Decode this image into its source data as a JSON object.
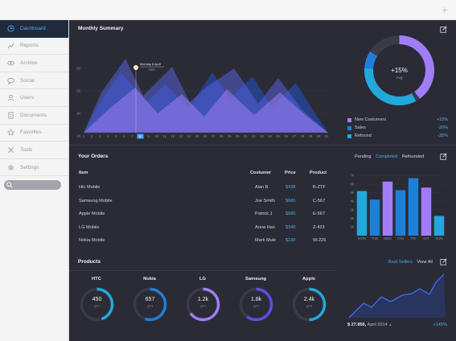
{
  "colors": {
    "accent": "#3fa9f5",
    "purple": "#a17ef7",
    "blue": "#1e7fd9",
    "cyan": "#22a8db",
    "bg": "#2b2b36"
  },
  "sidebar": {
    "items": [
      {
        "label": "Dashboard",
        "icon": "clock-icon"
      },
      {
        "label": "Reports",
        "icon": "chart-line-icon"
      },
      {
        "label": "Archive",
        "icon": "eye-icon"
      },
      {
        "label": "Social",
        "icon": "chat-bubble-icon"
      },
      {
        "label": "Users",
        "icon": "user-icon"
      },
      {
        "label": "Documents",
        "icon": "document-icon"
      },
      {
        "label": "Favorites",
        "icon": "star-icon"
      },
      {
        "label": "Tools",
        "icon": "tools-icon"
      },
      {
        "label": "Settings",
        "icon": "gear-icon"
      }
    ]
  },
  "summary": {
    "title": "Monthly Summary",
    "tooltip": {
      "label": "Monday 8 April",
      "value": "+58%"
    },
    "y_ticks": [
      "80",
      "60",
      "40",
      "20",
      "0"
    ],
    "x_ticks": [
      "1",
      "2",
      "3",
      "4",
      "5",
      "6",
      "7",
      "8",
      "9",
      "10",
      "11",
      "12",
      "13",
      "14",
      "15",
      "16",
      "17",
      "18",
      "19",
      "20",
      "21",
      "22",
      "23",
      "24",
      "25",
      "26",
      "27",
      "28",
      "29",
      "30",
      "31"
    ],
    "selected_day": "8"
  },
  "donut": {
    "center_value": "+15%",
    "center_label": "Avg",
    "legend": [
      {
        "label": "New Costumers",
        "pct": "+15%",
        "color": "#a17ef7"
      },
      {
        "label": "Sales",
        "pct": "-20%",
        "color": "#1e7fd9"
      },
      {
        "label": "Refound",
        "pct": "-35%",
        "color": "#22a8db"
      }
    ]
  },
  "orders": {
    "title": "Your Orders",
    "headers": {
      "item": "Item",
      "customer": "Costumer",
      "price": "Price",
      "product": "Product"
    },
    "rows": [
      {
        "item": "Htc Mobile",
        "customer": "Alan B",
        "price": "$438",
        "product": "B-ZTF"
      },
      {
        "item": "Samsung Mobile",
        "customer": "Joe Smith",
        "price": "$680",
        "product": "C-567"
      },
      {
        "item": "Apple Mobile",
        "customer": "Patrick J",
        "price": "$680",
        "product": "E-567"
      },
      {
        "item": "LG Mobile",
        "customer": "Anna Han",
        "price": "$340",
        "product": "Z-423"
      },
      {
        "item": "Nokia Mobile",
        "customer": "Mark Mule",
        "price": "$230",
        "product": "W-225"
      }
    ]
  },
  "bars": {
    "tabs": {
      "pending": "Pending",
      "completed": "Completed",
      "refounded": "Refounded"
    },
    "y_ticks": [
      "7k",
      "6k",
      "5k",
      "4k",
      "3k",
      "2k",
      "1k"
    ]
  },
  "chart_data": {
    "type": "bar",
    "categories": [
      "MON",
      "TUE",
      "WED",
      "THU",
      "FRI",
      "SAT",
      "SUN"
    ],
    "series": [
      {
        "values": [
          5.2,
          4.2,
          6.3,
          5.3,
          6.7,
          5.6,
          2.3
        ]
      }
    ],
    "bar_colors": [
      "#22a8db",
      "#1e7fd9",
      "#a17ef7",
      "#1e7fd9",
      "#1e7fd9",
      "#a17ef7",
      "#22a8db"
    ],
    "ylim": [
      0,
      7.5
    ]
  },
  "products": {
    "title": "Products",
    "links": {
      "best": "Best Sellers",
      "all": "View All"
    },
    "items": [
      {
        "name": "HTC",
        "value": "450",
        "unit": "QTY",
        "progress": 0.45,
        "color": "#22a8db"
      },
      {
        "name": "Nokia",
        "value": "657",
        "unit": "QTY",
        "progress": 0.55,
        "color": "#1e7fd9"
      },
      {
        "name": "LG",
        "value": "1.2k",
        "unit": "QTY",
        "progress": 0.65,
        "color": "#a17ef7"
      },
      {
        "name": "Samsung",
        "value": "1.8k",
        "unit": "QTY",
        "progress": 0.6,
        "color": "#5b4fe0"
      },
      {
        "name": "Apple",
        "value": "2.4k",
        "unit": "QTY",
        "progress": 0.5,
        "color": "#22a8db"
      }
    ]
  },
  "sales": {
    "amount": "$ 27.856,",
    "period": "April 2014",
    "pct": "+145%"
  }
}
